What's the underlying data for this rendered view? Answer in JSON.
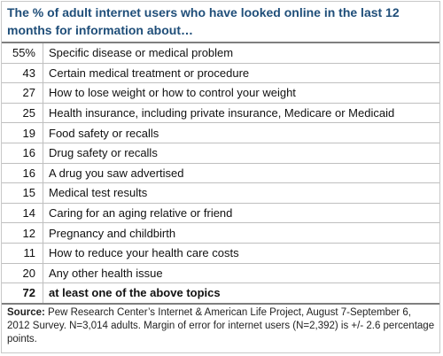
{
  "title": "The % of adult internet users who have looked online in the last 12 months for information about…",
  "table": {
    "rows": [
      [
        "55%",
        "Specific disease or medical problem"
      ],
      [
        "43",
        "Certain medical treatment or procedure"
      ],
      [
        "27",
        "How to lose weight or how to control your weight"
      ],
      [
        "25",
        "Health insurance, including private insurance, Medicare or Medicaid"
      ],
      [
        "19",
        "Food safety or recalls"
      ],
      [
        "16",
        "Drug safety or recalls"
      ],
      [
        "16",
        "A drug you saw advertised"
      ],
      [
        "15",
        "Medical test results"
      ],
      [
        "14",
        "Caring for an aging relative or friend"
      ],
      [
        "12",
        "Pregnancy and childbirth"
      ],
      [
        "11",
        "How to reduce your health care costs"
      ],
      [
        "20",
        "Any other health issue"
      ],
      [
        "72",
        "at least one of the above topics"
      ]
    ]
  },
  "footer": {
    "label": "Source:",
    "text": "Pew Research Center’s Internet & American Life Project, August 7-September 6, 2012 Survey. N=3,014 adults.  Margin of error for internet users (N=2,392) is +/- 2.6 percentage points."
  }
}
